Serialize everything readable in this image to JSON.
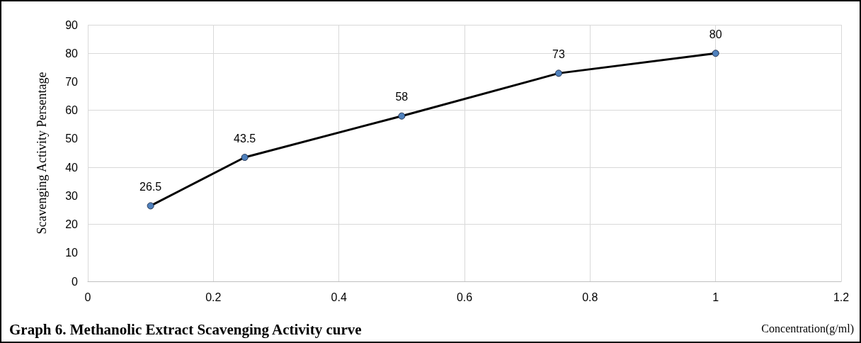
{
  "chart_data": {
    "type": "line",
    "title": "Graph 6. Methanolic Extract Scavenging Activity curve",
    "xlabel": "Concentration(g/ml)",
    "ylabel": "Scavenging Activity Persentage",
    "x": [
      0.1,
      0.25,
      0.5,
      0.75,
      1
    ],
    "series": [
      {
        "color": "#4f81bd",
        "values": [
          26.5,
          43.5,
          58,
          73,
          80
        ]
      }
    ],
    "xlim": [
      0,
      1.2
    ],
    "xticks": [
      0,
      0.2,
      0.4,
      0.6,
      0.8,
      1,
      1.2
    ],
    "ylim": [
      0,
      90
    ],
    "yticks": [
      0,
      10,
      20,
      30,
      40,
      50,
      60,
      70,
      80,
      90
    ],
    "grid": true,
    "marker": "circle",
    "line_style": "solid",
    "data_labels": true
  }
}
